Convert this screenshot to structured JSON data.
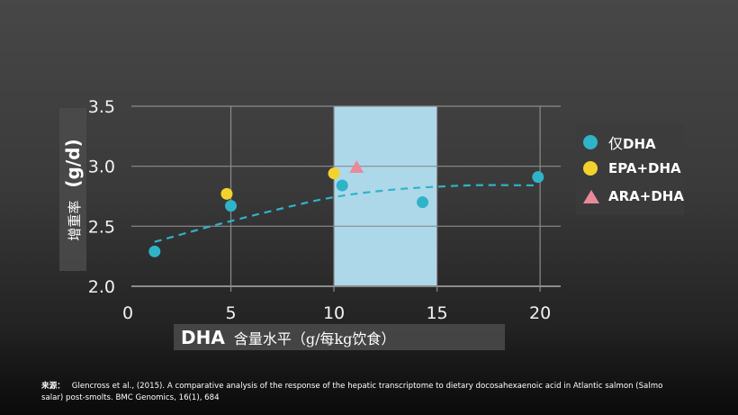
{
  "chart_data": {
    "type": "scatter",
    "title": "",
    "xlabel_strong": "DHA",
    "xlabel_rest": "含量水平（g/每kg饮食）",
    "ylabel_rest": "增重率",
    "ylabel_strong": "(g/d)",
    "xlim": [
      0,
      21
    ],
    "ylim": [
      2.0,
      3.5
    ],
    "x_ticks": [
      0,
      5,
      10,
      15,
      20
    ],
    "y_ticks": [
      2.0,
      2.5,
      3.0,
      3.5
    ],
    "y_tick_labels": [
      "2.0",
      "2.5",
      "3.0",
      "3.5"
    ],
    "grid": true,
    "legend_position": "right",
    "highlight_band": {
      "x": [
        10,
        15
      ],
      "color": "#add8ea"
    },
    "series": [
      {
        "name": "仅DHA",
        "name_cjk": "仅",
        "name_latin": "DHA",
        "marker": "circle",
        "color": "#2fb3c8",
        "points": [
          {
            "x": 1.3,
            "y": 2.29
          },
          {
            "x": 5.0,
            "y": 2.67
          },
          {
            "x": 10.4,
            "y": 2.84
          },
          {
            "x": 14.3,
            "y": 2.7
          },
          {
            "x": 19.9,
            "y": 2.91
          }
        ]
      },
      {
        "name": "EPA+DHA",
        "marker": "circle",
        "color": "#f2d22c",
        "points": [
          {
            "x": 4.8,
            "y": 2.77
          },
          {
            "x": 10.0,
            "y": 2.94
          }
        ]
      },
      {
        "name": "ARA+DHA",
        "marker": "triangle",
        "color": "#e88a9a",
        "points": [
          {
            "x": 11.1,
            "y": 2.99
          }
        ]
      }
    ],
    "trend_line": {
      "style": "dashed",
      "color": "#2fb3c8",
      "points": [
        {
          "x": 1.3,
          "y": 2.37
        },
        {
          "x": 4.0,
          "y": 2.5
        },
        {
          "x": 7.0,
          "y": 2.63
        },
        {
          "x": 10.0,
          "y": 2.75
        },
        {
          "x": 13.0,
          "y": 2.81
        },
        {
          "x": 15.0,
          "y": 2.83
        },
        {
          "x": 17.0,
          "y": 2.845
        },
        {
          "x": 19.9,
          "y": 2.84
        }
      ]
    }
  },
  "colors": {
    "grid": "#8c8c8c",
    "axis": "#8c8c8c",
    "text": "#ffffff"
  },
  "source": {
    "label": "来源：",
    "text": "Glencross et al., (2015). A comparative analysis of the response of the hepatic transcriptome to dietary docosahexaenoic acid in Atlantic salmon (Salmo salar) post-smolts. BMC Genomics, 16(1), 684"
  }
}
